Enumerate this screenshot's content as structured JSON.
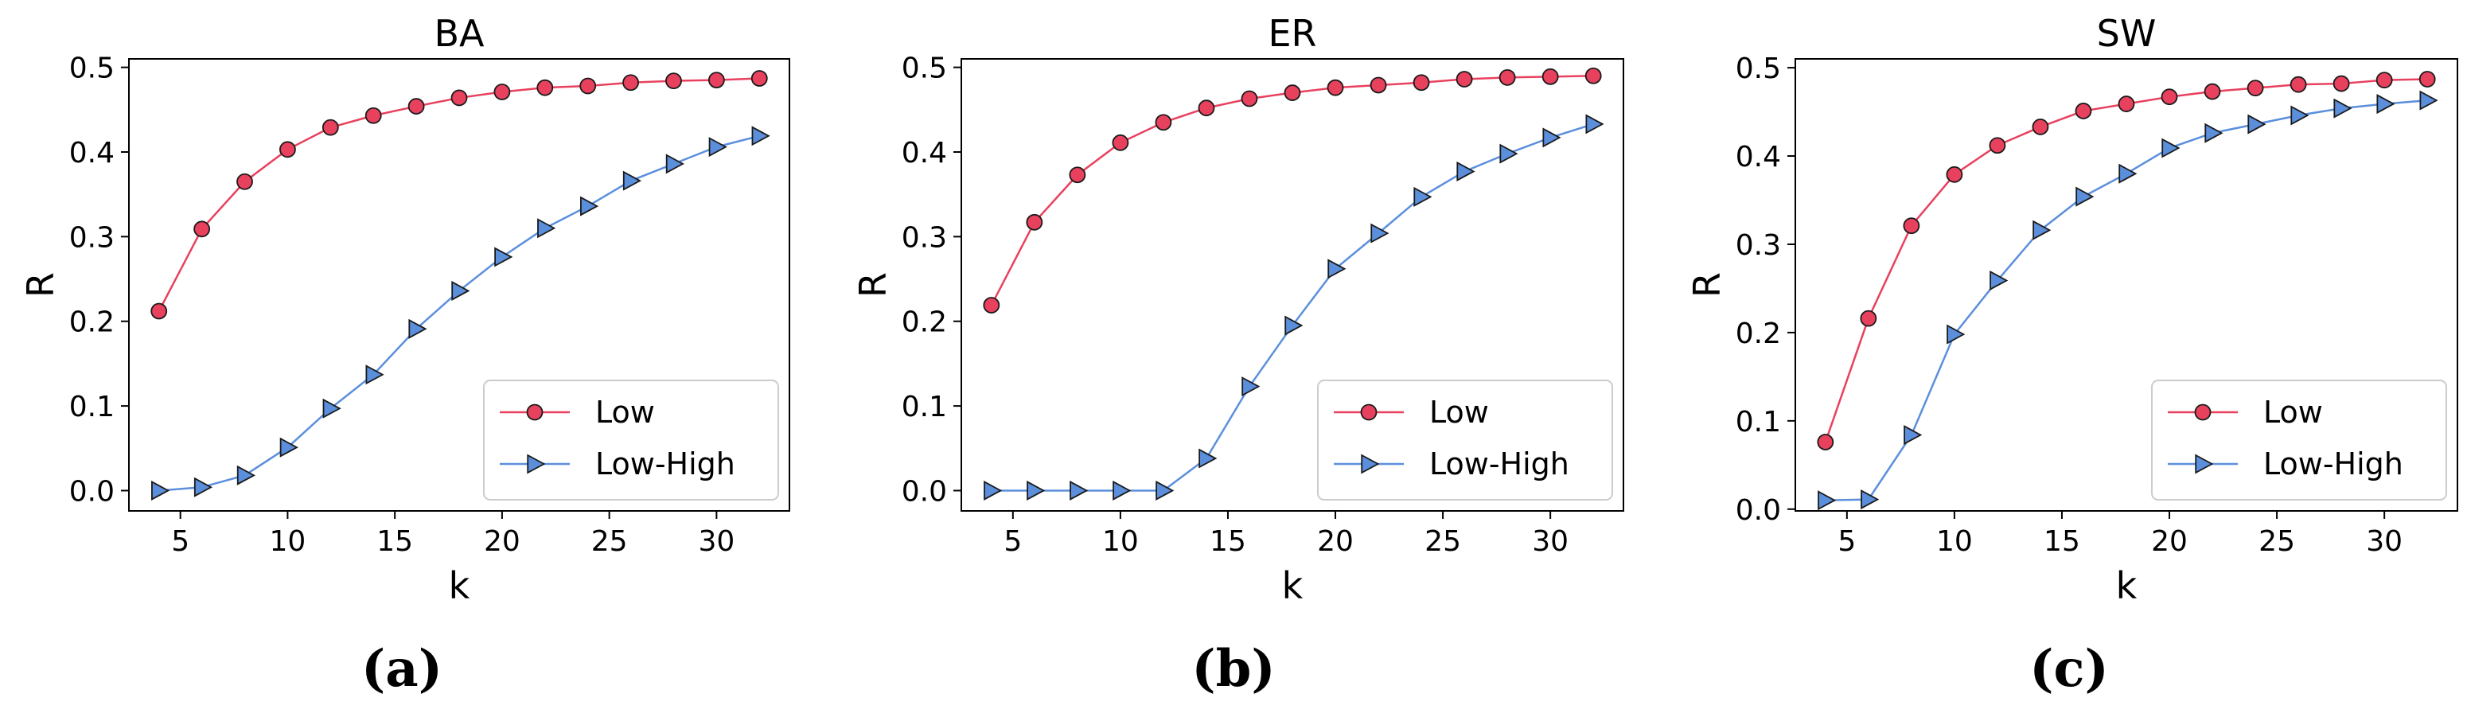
{
  "colors": {
    "low": "#e8415e",
    "low_high": "#5b8fdc",
    "marker_edge": "#1a1a1a"
  },
  "chart_data": [
    {
      "type": "line",
      "title": "BA",
      "caption": "(a)",
      "xlabel": "k",
      "ylabel": "R",
      "xlim": [
        2.6,
        33.4
      ],
      "ylim": [
        -0.024,
        0.51
      ],
      "xticks": [
        5,
        10,
        15,
        20,
        25,
        30
      ],
      "xtick_labels": [
        "5",
        "10",
        "15",
        "20",
        "25",
        "30"
      ],
      "yticks": [
        0.0,
        0.1,
        0.2,
        0.3,
        0.4,
        0.5
      ],
      "ytick_labels": [
        "0.0",
        "0.1",
        "0.2",
        "0.3",
        "0.4",
        "0.5"
      ],
      "legend_position": "lower-right",
      "x": [
        4,
        6,
        8,
        10,
        12,
        14,
        16,
        18,
        20,
        22,
        24,
        26,
        28,
        30,
        32
      ],
      "series": [
        {
          "name": "Low",
          "marker": "circle",
          "values": [
            0.212,
            0.309,
            0.365,
            0.403,
            0.429,
            0.443,
            0.454,
            0.464,
            0.471,
            0.476,
            0.478,
            0.482,
            0.484,
            0.485,
            0.487
          ]
        },
        {
          "name": "Low-High",
          "marker": "triangle-right",
          "values": [
            0.0,
            0.004,
            0.018,
            0.051,
            0.097,
            0.137,
            0.191,
            0.236,
            0.276,
            0.31,
            0.336,
            0.366,
            0.386,
            0.406,
            0.419
          ]
        }
      ]
    },
    {
      "type": "line",
      "title": "ER",
      "caption": "(b)",
      "xlabel": "k",
      "ylabel": "R",
      "xlim": [
        2.6,
        33.4
      ],
      "ylim": [
        -0.024,
        0.51
      ],
      "xticks": [
        5,
        10,
        15,
        20,
        25,
        30
      ],
      "xtick_labels": [
        "5",
        "10",
        "15",
        "20",
        "25",
        "30"
      ],
      "yticks": [
        0.0,
        0.1,
        0.2,
        0.3,
        0.4,
        0.5
      ],
      "ytick_labels": [
        "0.0",
        "0.1",
        "0.2",
        "0.3",
        "0.4",
        "0.5"
      ],
      "legend_position": "lower-right",
      "x": [
        4,
        6,
        8,
        10,
        12,
        14,
        16,
        18,
        20,
        22,
        24,
        26,
        28,
        30,
        32
      ],
      "series": [
        {
          "name": "Low",
          "marker": "circle",
          "values": [
            0.219,
            0.317,
            0.373,
            0.411,
            0.435,
            0.452,
            0.463,
            0.47,
            0.476,
            0.479,
            0.482,
            0.486,
            0.488,
            0.489,
            0.49
          ]
        },
        {
          "name": "Low-High",
          "marker": "triangle-right",
          "values": [
            0.0,
            0.0,
            0.0,
            0.0,
            0.0,
            0.038,
            0.123,
            0.195,
            0.262,
            0.304,
            0.347,
            0.377,
            0.398,
            0.417,
            0.433
          ]
        }
      ]
    },
    {
      "type": "line",
      "title": "SW",
      "caption": "(c)",
      "xlabel": "k",
      "ylabel": "R",
      "xlim": [
        2.6,
        33.4
      ],
      "ylim": [
        -0.002,
        0.51
      ],
      "xticks": [
        5,
        10,
        15,
        20,
        25,
        30
      ],
      "xtick_labels": [
        "5",
        "10",
        "15",
        "20",
        "25",
        "30"
      ],
      "yticks": [
        0.0,
        0.1,
        0.2,
        0.3,
        0.4,
        0.5
      ],
      "ytick_labels": [
        "0.0",
        "0.1",
        "0.2",
        "0.3",
        "0.4",
        "0.5"
      ],
      "legend_position": "lower-right",
      "x": [
        4,
        6,
        8,
        10,
        12,
        14,
        16,
        18,
        20,
        22,
        24,
        26,
        28,
        30,
        32
      ],
      "series": [
        {
          "name": "Low",
          "marker": "circle",
          "values": [
            0.076,
            0.216,
            0.321,
            0.379,
            0.412,
            0.433,
            0.451,
            0.459,
            0.467,
            0.473,
            0.477,
            0.481,
            0.482,
            0.486,
            0.487
          ]
        },
        {
          "name": "Low-High",
          "marker": "triangle-right",
          "values": [
            0.01,
            0.011,
            0.084,
            0.198,
            0.259,
            0.316,
            0.354,
            0.38,
            0.409,
            0.426,
            0.436,
            0.446,
            0.454,
            0.459,
            0.463
          ]
        }
      ]
    }
  ]
}
